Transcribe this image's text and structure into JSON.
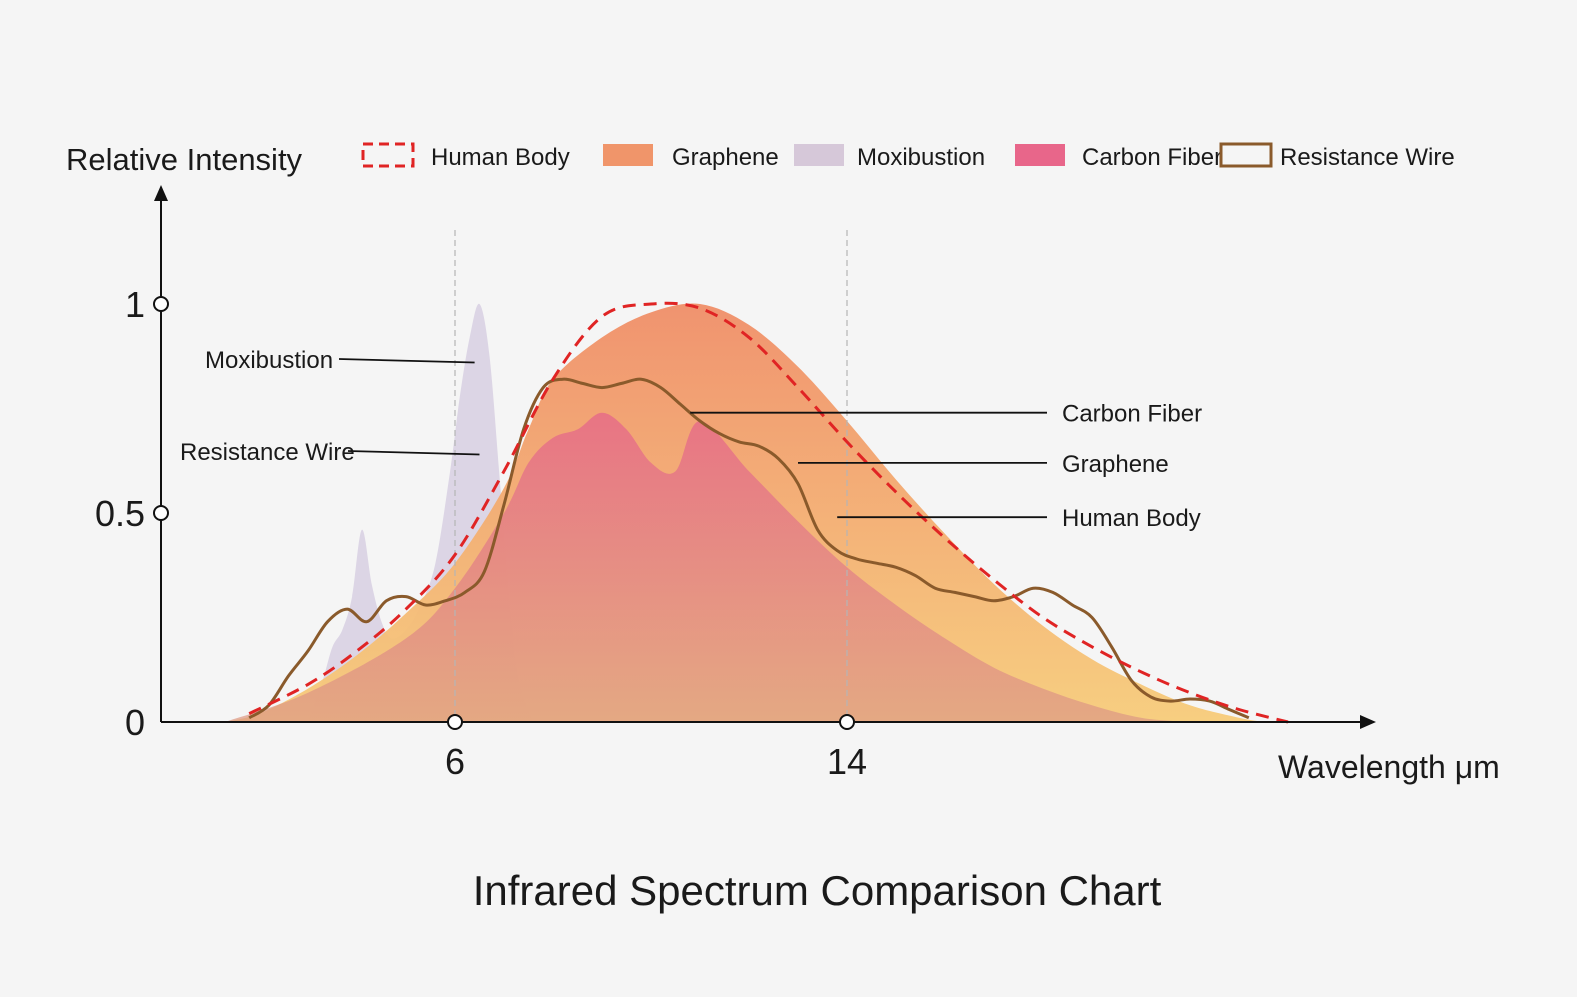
{
  "chart_data": {
    "type": "area",
    "title": "Infrared Spectrum Comparison Chart",
    "ylabel": "Relative Intensity",
    "xlabel": "Wavelength μm",
    "xlim": [
      0,
      23
    ],
    "ylim": [
      0,
      1
    ],
    "x_ticks": [
      6,
      14
    ],
    "y_ticks": [
      0,
      0.5,
      1
    ],
    "x_tick_labels": [
      "6",
      "14"
    ],
    "y_tick_labels": [
      "0",
      "0.5",
      "1"
    ],
    "reference_lines_x": [
      6,
      14
    ],
    "legend_position": "top",
    "series": [
      {
        "name": "Graphene",
        "style": "filled-area",
        "color": "#f5b969",
        "x": [
          1.3,
          2,
          3,
          4,
          5,
          6,
          7,
          7.5,
          8,
          9,
          10,
          11,
          12,
          13,
          14,
          15,
          16,
          17,
          18,
          19,
          20,
          21,
          22,
          22.5
        ],
        "y": [
          0,
          0.02,
          0.08,
          0.16,
          0.26,
          0.38,
          0.56,
          0.7,
          0.82,
          0.92,
          0.98,
          1.0,
          0.95,
          0.85,
          0.72,
          0.58,
          0.45,
          0.33,
          0.23,
          0.15,
          0.09,
          0.04,
          0.01,
          0
        ]
      },
      {
        "name": "Human Body",
        "style": "dashed-line",
        "color": "#e02424",
        "x": [
          1.8,
          3,
          4,
          5,
          6,
          7,
          8,
          9,
          10,
          11,
          12,
          13,
          14,
          15,
          16,
          17,
          18,
          19,
          20,
          21,
          22,
          23
        ],
        "y": [
          0.02,
          0.09,
          0.17,
          0.27,
          0.4,
          0.6,
          0.82,
          0.97,
          1.0,
          0.99,
          0.92,
          0.8,
          0.67,
          0.55,
          0.44,
          0.34,
          0.25,
          0.18,
          0.12,
          0.07,
          0.03,
          0.0
        ]
      },
      {
        "name": "Moxibustion",
        "style": "filled-area",
        "color": "#d9d2e3",
        "x": [
          3,
          3.3,
          3.5,
          3.7,
          3.9,
          4.1,
          4.3,
          4.5,
          4.7,
          5,
          5.3,
          5.6,
          5.9,
          6.1,
          6.3,
          6.5,
          6.7,
          6.9,
          7.1,
          7.3,
          7.6
        ],
        "y": [
          0,
          0.1,
          0.18,
          0.22,
          0.3,
          0.46,
          0.33,
          0.24,
          0.2,
          0.22,
          0.28,
          0.38,
          0.6,
          0.78,
          0.92,
          1.0,
          0.88,
          0.6,
          0.3,
          0.1,
          0
        ]
      },
      {
        "name": "Carbon Fiber",
        "style": "filled-area",
        "color": "#e56a8a",
        "x": [
          1.3,
          3,
          5,
          6,
          7,
          7.5,
          8,
          8.5,
          9,
          9.5,
          10,
          10.5,
          11,
          12,
          13,
          14,
          15,
          16,
          17,
          18,
          19,
          20,
          21
        ],
        "y": [
          0,
          0.07,
          0.2,
          0.32,
          0.5,
          0.62,
          0.68,
          0.7,
          0.74,
          0.7,
          0.62,
          0.6,
          0.72,
          0.6,
          0.48,
          0.37,
          0.28,
          0.2,
          0.13,
          0.08,
          0.04,
          0.01,
          0
        ]
      },
      {
        "name": "Resistance Wire",
        "style": "line",
        "color": "#8a5a2b",
        "x": [
          1.8,
          2.2,
          2.6,
          3,
          3.4,
          3.8,
          4.2,
          4.6,
          5,
          5.4,
          5.8,
          6.2,
          6.6,
          7,
          7.4,
          7.8,
          8.2,
          8.6,
          9,
          9.4,
          9.8,
          10.2,
          10.6,
          11,
          11.4,
          11.8,
          12.2,
          12.6,
          13,
          13.4,
          13.8,
          14.2,
          14.6,
          15,
          15.4,
          15.8,
          16.2,
          16.6,
          17,
          17.4,
          17.8,
          18.2,
          18.6,
          19,
          19.4,
          19.8,
          20.2,
          20.6,
          21,
          21.4,
          21.8,
          22.2
        ],
        "y": [
          0.01,
          0.04,
          0.11,
          0.17,
          0.24,
          0.27,
          0.24,
          0.29,
          0.3,
          0.28,
          0.29,
          0.31,
          0.36,
          0.52,
          0.7,
          0.8,
          0.82,
          0.81,
          0.8,
          0.81,
          0.82,
          0.8,
          0.76,
          0.72,
          0.69,
          0.67,
          0.66,
          0.63,
          0.57,
          0.46,
          0.41,
          0.39,
          0.38,
          0.37,
          0.35,
          0.32,
          0.31,
          0.3,
          0.29,
          0.3,
          0.32,
          0.31,
          0.28,
          0.25,
          0.18,
          0.1,
          0.06,
          0.05,
          0.055,
          0.05,
          0.03,
          0.01
        ]
      }
    ],
    "annotations": [
      {
        "text": "Moxibustion",
        "series": "Moxibustion",
        "side": "left"
      },
      {
        "text": "Resistance Wire",
        "series": "Resistance Wire",
        "side": "left"
      },
      {
        "text": "Carbon Fiber",
        "series": "Carbon Fiber",
        "side": "right"
      },
      {
        "text": "Graphene",
        "series": "Graphene",
        "side": "right"
      },
      {
        "text": "Human Body",
        "series": "Human Body",
        "side": "right"
      }
    ],
    "legend": [
      {
        "label": "Human Body",
        "swatch": "dashed-outline",
        "color": "#e02424"
      },
      {
        "label": "Graphene",
        "swatch": "filled",
        "color": "#f0956a"
      },
      {
        "label": "Moxibustion",
        "swatch": "filled",
        "color": "#d6c8d9"
      },
      {
        "label": "Carbon Fiber",
        "swatch": "filled",
        "color": "#e8668a"
      },
      {
        "label": "Resistance Wire",
        "swatch": "outline",
        "color": "#8a5a2b"
      }
    ]
  }
}
